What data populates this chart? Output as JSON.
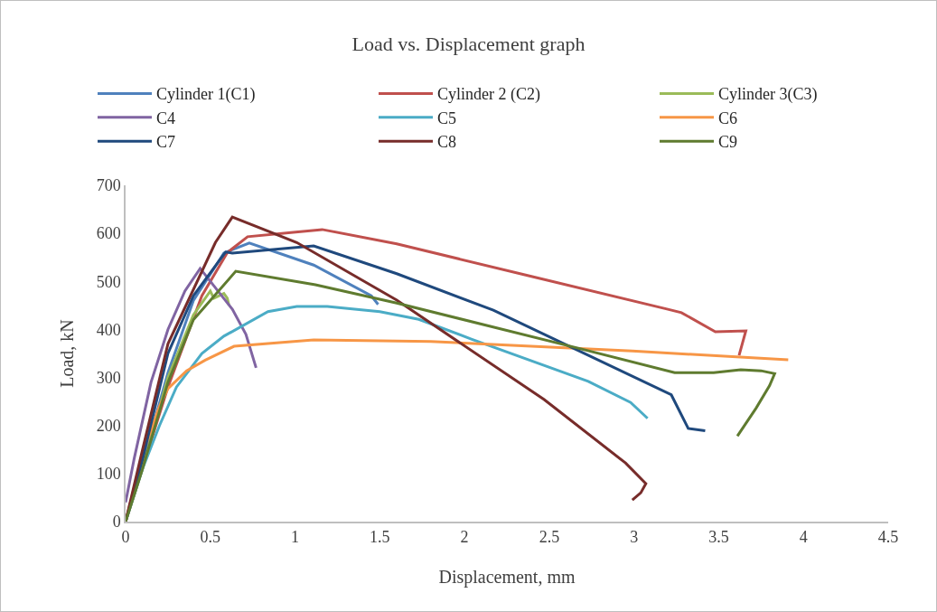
{
  "chart_data": {
    "type": "line",
    "title": "Load vs. Displacement graph",
    "xlabel": "Displacement, mm",
    "ylabel": "Load, kN",
    "xlim": [
      0,
      4.5
    ],
    "xticks": [
      0,
      0.5,
      1,
      1.5,
      2,
      2.5,
      3,
      3.5,
      4,
      4.5
    ],
    "ylim": [
      0,
      700
    ],
    "yticks": [
      0,
      100,
      200,
      300,
      400,
      500,
      600,
      700
    ],
    "grid": false,
    "legend": "top",
    "marker": "none",
    "line_style": "solid",
    "series": [
      {
        "name": "Cylinder 1(C1)",
        "color": "#4f81bd",
        "x": [
          0,
          0.1,
          0.25,
          0.4,
          0.58,
          0.73,
          1.11,
          1.45,
          1.49
        ],
        "values": [
          0,
          120,
          310,
          460,
          559,
          580,
          534,
          470,
          452
        ]
      },
      {
        "name": "Cylinder 2 (C2)",
        "color": "#c0504d",
        "x": [
          0,
          0.25,
          0.45,
          0.6,
          0.72,
          1.16,
          1.6,
          2.4,
          3.2,
          3.28,
          3.48,
          3.66,
          3.62
        ],
        "values": [
          0,
          280,
          470,
          560,
          593,
          608,
          578,
          510,
          442,
          435,
          395,
          397,
          346
        ]
      },
      {
        "name": "Cylinder 3(C3)",
        "color": "#9bbb59",
        "x": [
          0,
          0.1,
          0.25,
          0.4,
          0.5,
          0.52,
          0.58,
          0.6,
          0.61
        ],
        "values": [
          0,
          110,
          300,
          430,
          480,
          465,
          475,
          465,
          450
        ]
      },
      {
        "name": "C4",
        "color": "#8064a2",
        "x": [
          0,
          0.05,
          0.15,
          0.25,
          0.35,
          0.44,
          0.63,
          0.71,
          0.77
        ],
        "values": [
          40,
          130,
          290,
          400,
          480,
          527,
          442,
          390,
          320
        ]
      },
      {
        "name": "C5",
        "color": "#4bacc6",
        "x": [
          0,
          0.1,
          0.2,
          0.3,
          0.45,
          0.58,
          0.84,
          1.01,
          1.19,
          1.5,
          1.73,
          2.04,
          2.73,
          2.98,
          3.08
        ],
        "values": [
          0,
          110,
          200,
          280,
          350,
          386,
          437,
          448,
          448,
          437,
          421,
          380,
          292,
          248,
          215
        ]
      },
      {
        "name": "C6",
        "color": "#f79646",
        "x": [
          0,
          0.1,
          0.2,
          0.25,
          0.36,
          0.47,
          0.64,
          1.11,
          1.8,
          2.99,
          3.91
        ],
        "values": [
          0,
          140,
          240,
          277,
          314,
          336,
          365,
          378,
          375,
          355,
          337
        ]
      },
      {
        "name": "C7",
        "color": "#1f497d",
        "x": [
          0,
          0.1,
          0.25,
          0.4,
          0.59,
          0.63,
          1.11,
          1.6,
          2.17,
          3.22,
          3.32,
          3.42
        ],
        "values": [
          0,
          130,
          350,
          470,
          561,
          559,
          574,
          516,
          440,
          264,
          194,
          189
        ]
      },
      {
        "name": "C8",
        "color": "#772c2a",
        "x": [
          0,
          0.1,
          0.25,
          0.53,
          0.63,
          1.01,
          1.6,
          2.47,
          2.95,
          3.07,
          3.04,
          2.99
        ],
        "values": [
          0,
          150,
          370,
          581,
          634,
          581,
          461,
          254,
          122,
          79,
          60,
          45
        ]
      },
      {
        "name": "C9",
        "color": "#5f7b2f",
        "x": [
          0,
          0.1,
          0.25,
          0.4,
          0.65,
          1.12,
          1.6,
          2.67,
          3.24,
          3.47,
          3.63,
          3.75,
          3.83,
          3.8,
          3.72,
          3.61
        ],
        "values": [
          0,
          110,
          290,
          420,
          521,
          493,
          455,
          361,
          310,
          310,
          316,
          314,
          308,
          283,
          236,
          178
        ]
      }
    ]
  }
}
